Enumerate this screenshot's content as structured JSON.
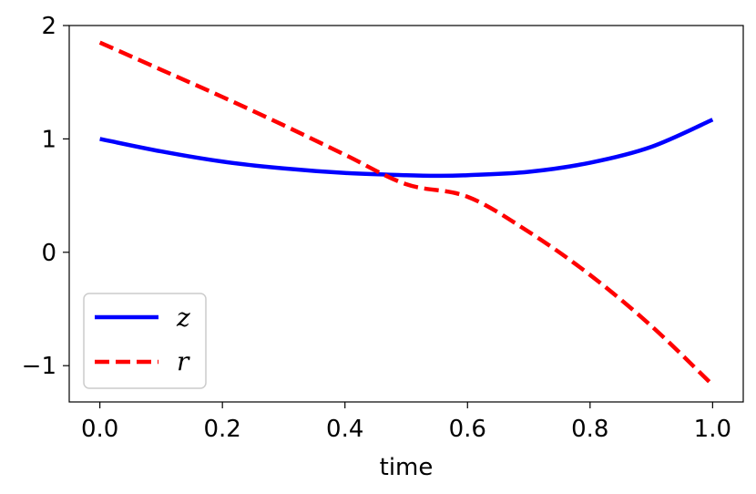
{
  "chart_data": {
    "type": "line",
    "title": "",
    "xlabel": "time",
    "ylabel": "",
    "xlim": [
      -0.05,
      1.05
    ],
    "ylim": [
      -1.32,
      2.0
    ],
    "xticks": [
      0.0,
      0.2,
      0.4,
      0.6,
      0.8,
      1.0
    ],
    "xtick_labels": [
      "0.0",
      "0.2",
      "0.4",
      "0.6",
      "0.8",
      "1.0"
    ],
    "yticks": [
      -1,
      0,
      1,
      2
    ],
    "ytick_labels": [
      "−1",
      "0",
      "1",
      "2"
    ],
    "grid": false,
    "legend_position": "lower-left",
    "series": [
      {
        "name": "z",
        "color": "#0000ff",
        "style": "solid",
        "x": [
          0.0,
          0.1,
          0.2,
          0.3,
          0.4,
          0.5,
          0.55,
          0.6,
          0.7,
          0.8,
          0.9,
          1.0
        ],
        "y": [
          1.0,
          0.89,
          0.8,
          0.74,
          0.7,
          0.68,
          0.675,
          0.68,
          0.71,
          0.79,
          0.93,
          1.17
        ]
      },
      {
        "name": "r",
        "color": "#ff0000",
        "style": "dashed",
        "x": [
          0.0,
          0.1,
          0.2,
          0.3,
          0.4,
          0.5,
          0.6,
          0.7,
          0.8,
          0.9,
          1.0
        ],
        "y": [
          1.85,
          1.61,
          1.37,
          1.12,
          0.86,
          0.6,
          0.49,
          0.18,
          -0.2,
          -0.65,
          -1.17
        ]
      }
    ]
  }
}
